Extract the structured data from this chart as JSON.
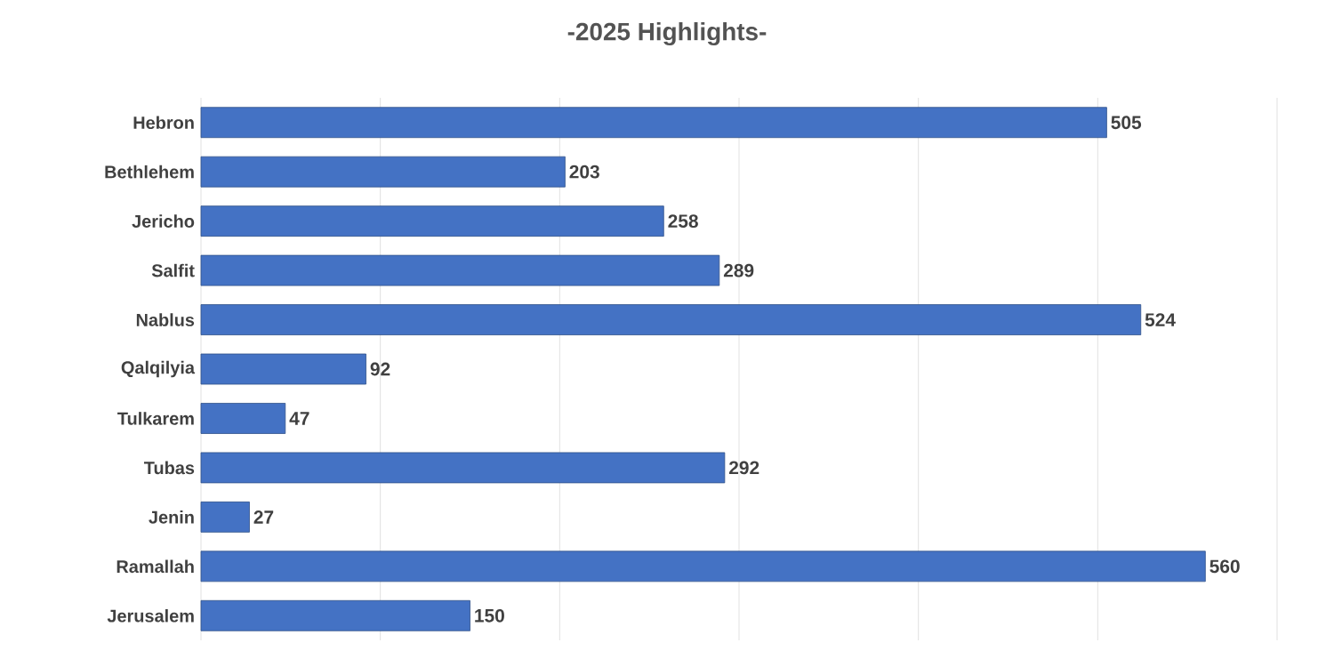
{
  "chart_data": {
    "type": "bar",
    "orientation": "horizontal",
    "title": "-2025 Highlights-",
    "categories": [
      "Hebron",
      "Bethlehem",
      "Jericho",
      "Salfit",
      "Nablus",
      "Qalqilyia",
      "Tulkarem",
      "Tubas",
      "Jenin",
      "Ramallah",
      "Jerusalem"
    ],
    "values": [
      505,
      203,
      258,
      289,
      524,
      92,
      47,
      292,
      27,
      560,
      150
    ],
    "color": "#4472c4",
    "data_labels": true,
    "grid": "x",
    "tick_labels": "y",
    "xlim": [
      0,
      600
    ],
    "xticks": [
      {
        "value": 0,
        "label": null
      },
      {
        "value": 100,
        "label": null
      },
      {
        "value": 200,
        "label": null
      },
      {
        "value": 300,
        "label": null
      },
      {
        "value": 400,
        "label": null
      },
      {
        "value": 500,
        "label": null
      },
      {
        "value": 600,
        "label": null
      }
    ]
  }
}
